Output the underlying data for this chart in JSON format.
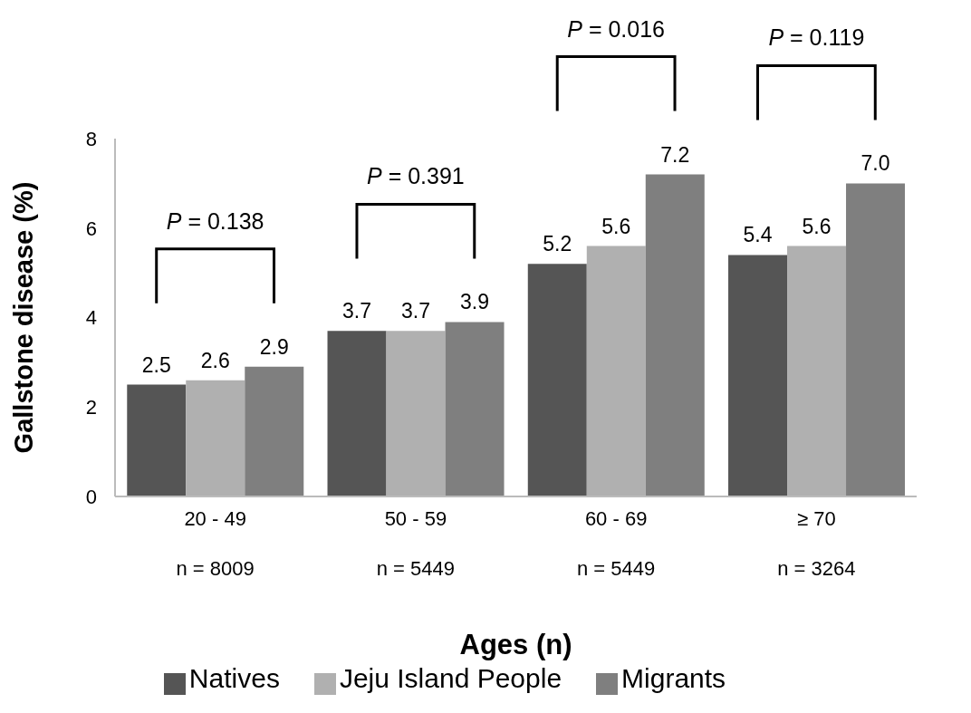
{
  "chart_data": {
    "type": "bar",
    "xlabel": "Ages (n)",
    "ylabel": "Gallstone disease (%)",
    "categories": [
      "20 - 49\nn = 8009",
      "50 - 59\nn = 5449",
      "60 - 69\nn = 5449",
      "≥ 70\nn = 3264"
    ],
    "series": [
      {
        "name": "Natives",
        "color": "#555555",
        "values": [
          2.5,
          3.7,
          5.2,
          5.4
        ],
        "value_labels": [
          "2.5",
          "3.7",
          "5.2",
          "5.4"
        ]
      },
      {
        "name": "Jeju Island People",
        "color": "#b0b0b0",
        "values": [
          2.6,
          3.7,
          5.6,
          5.6
        ],
        "value_labels": [
          "2.6",
          "3.7",
          "5.6",
          "5.6"
        ]
      },
      {
        "name": "Migrants",
        "color": "#7f7f7f",
        "values": [
          2.9,
          3.9,
          7.2,
          7.0
        ],
        "value_labels": [
          "2.9",
          "3.9",
          "7.2",
          "7.0"
        ]
      }
    ],
    "ylim": [
      0,
      8
    ],
    "yticks": [
      0,
      2,
      4,
      6,
      8
    ],
    "grid": false,
    "legend": "bottom",
    "annotations": [
      "P = 0.138",
      "P = 0.391",
      "P = 0.016",
      "P = 0.119"
    ]
  }
}
